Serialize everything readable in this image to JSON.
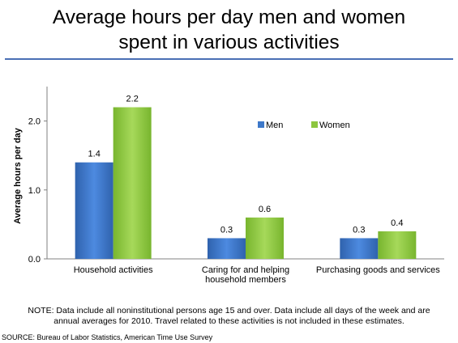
{
  "slide": {
    "title_line1": "Average hours per day men and women",
    "title_line2": "spent in various activities",
    "note_line1": "NOTE: Data include all noninstitutional persons age 15 and over. Data include all days of the week and are",
    "note_line2": "annual averages for 2010. Travel related to these activities is not included in these estimates.",
    "source": "SOURCE: Bureau of Labor Statistics, American Time Use Survey"
  },
  "chart_data": {
    "type": "bar",
    "categories": [
      [
        "Household activities"
      ],
      [
        "Caring for and helping",
        "household members"
      ],
      [
        "Purchasing goods and services"
      ]
    ],
    "series": [
      {
        "name": "Men",
        "values": [
          1.4,
          0.3,
          0.3
        ],
        "color": "#3d78c9"
      },
      {
        "name": "Women",
        "values": [
          2.2,
          0.6,
          0.4
        ],
        "color": "#8dc63f"
      }
    ],
    "data_labels": [
      [
        "1.4",
        "0.3",
        "0.3"
      ],
      [
        "2.2",
        "0.6",
        "0.4"
      ]
    ],
    "ylabel": "Average hours per day",
    "ylim": [
      0,
      2.5
    ],
    "yticks": [
      0,
      1,
      2
    ],
    "ytick_labels": [
      "0.0",
      "1.0",
      "2.0"
    ],
    "legend_position": "top-right",
    "grid": false
  }
}
